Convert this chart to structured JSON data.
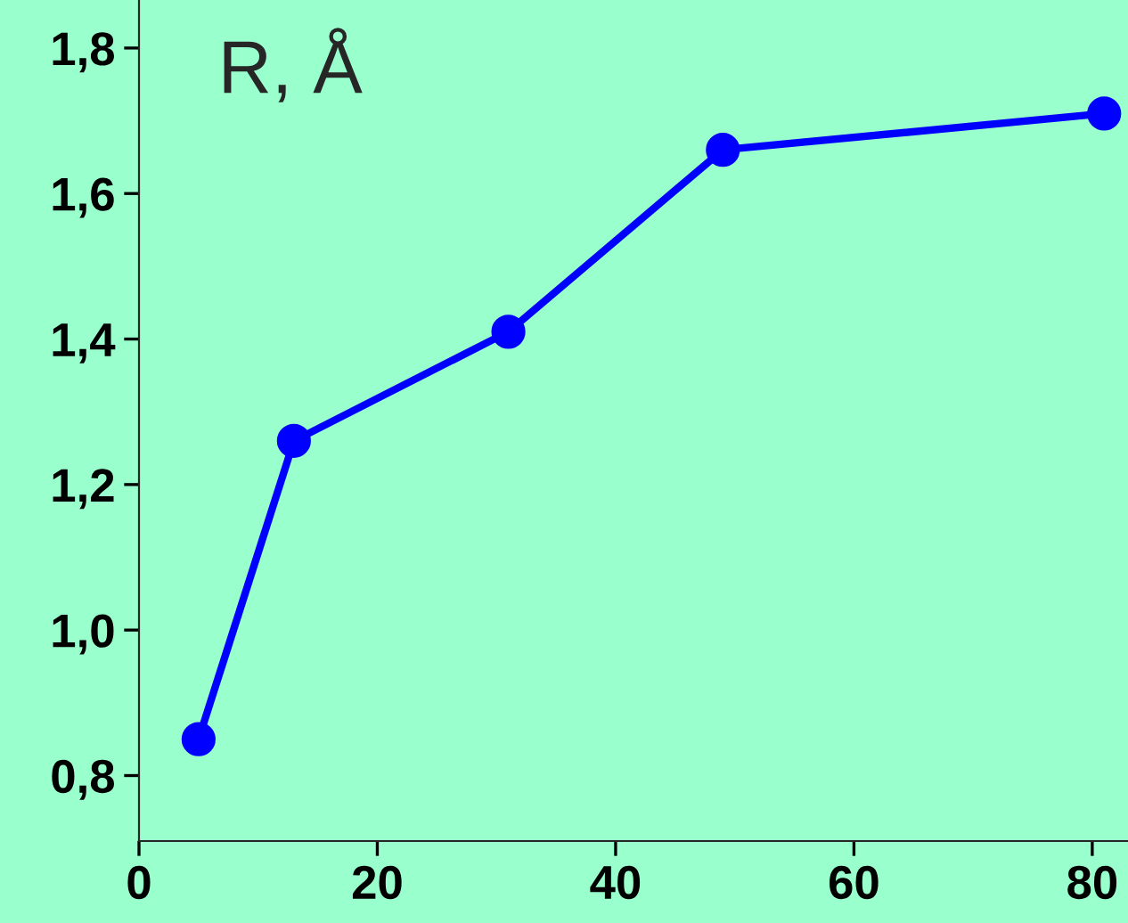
{
  "chart_data": {
    "type": "line",
    "ylabel": "R, Å",
    "x": [
      5,
      13,
      31,
      49,
      81
    ],
    "series": [
      {
        "color": "#0000ff",
        "values": [
          0.85,
          1.26,
          1.41,
          1.66,
          1.71
        ]
      }
    ],
    "xlim": [
      0,
      83
    ],
    "ylim": [
      0.71,
      1.866
    ],
    "xticks": [
      0,
      20,
      40,
      60,
      80
    ],
    "yticks": [
      {
        "value": 0.8,
        "label": "0,8"
      },
      {
        "value": 1.0,
        "label": "1,0"
      },
      {
        "value": 1.2,
        "label": "1,2"
      },
      {
        "value": 1.4,
        "label": "1,4"
      },
      {
        "value": 1.6,
        "label": "1,6"
      },
      {
        "value": 1.8,
        "label": "1,8"
      }
    ],
    "marker": "circle",
    "line_style": "solid",
    "grid": false,
    "legend": false
  }
}
